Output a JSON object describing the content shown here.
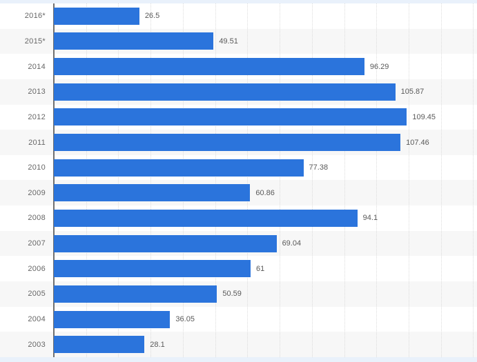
{
  "chart_data": {
    "type": "bar",
    "orientation": "horizontal",
    "title": "",
    "xlabel": "",
    "ylabel": "",
    "categories": [
      "2016*",
      "2015*",
      "2014",
      "2013",
      "2012",
      "2011",
      "2010",
      "2009",
      "2008",
      "2007",
      "2006",
      "2005",
      "2004",
      "2003"
    ],
    "values": [
      26.5,
      49.51,
      96.29,
      105.87,
      109.45,
      107.46,
      77.38,
      60.86,
      94.1,
      69.04,
      61,
      50.59,
      36.05,
      28.1
    ],
    "value_labels": [
      "26.5",
      "49.51",
      "96.29",
      "105.87",
      "109.45",
      "107.46",
      "77.38",
      "60.86",
      "94.1",
      "69.04",
      "61",
      "50.59",
      "36.05",
      "28.1"
    ],
    "xlim": [
      0,
      131.2
    ],
    "gridline_step": 10,
    "grid": "vertical-dotted",
    "legend": "none",
    "alternating_row_bands": true,
    "style": {
      "bar_color": "#2b74dc",
      "band_color": "#f7f7f7",
      "strip_color": "#e9f1fb",
      "axis_line_color": "#6f6f6f",
      "gridline_color": "#dcdcdc",
      "label_color": "#666666",
      "value_label_color": "#595959"
    }
  }
}
